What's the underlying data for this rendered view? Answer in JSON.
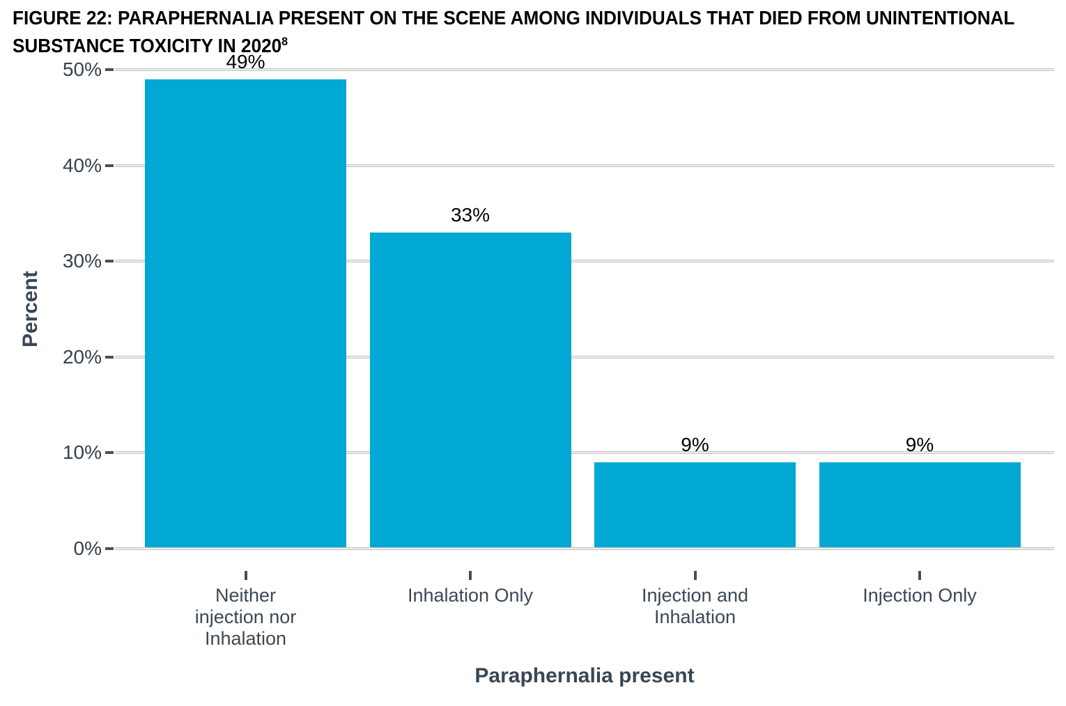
{
  "figure": {
    "title_line1": "FIGURE 22: PARAPHERNALIA PRESENT ON THE SCENE AMONG INDIVIDUALS THAT DIED FROM UNINTENTIONAL",
    "title_line2": "SUBSTANCE TOXICITY IN 2020",
    "title_superscript": "8"
  },
  "chart_data": {
    "type": "bar",
    "title": "FIGURE 22: PARAPHERNALIA PRESENT ON THE SCENE AMONG INDIVIDUALS THAT DIED FROM UNINTENTIONAL SUBSTANCE TOXICITY IN 2020(8)",
    "categories": [
      "Neither injection nor Inhalation",
      "Inhalation Only",
      "Injection and Inhalation",
      "Injection Only"
    ],
    "category_lines": [
      [
        "Neither",
        "injection nor",
        "Inhalation"
      ],
      [
        "Inhalation Only"
      ],
      [
        "Injection and",
        "Inhalation"
      ],
      [
        "Injection Only"
      ]
    ],
    "values": [
      49,
      33,
      9,
      9
    ],
    "value_labels": [
      "49%",
      "33%",
      "9%",
      "9%"
    ],
    "xlabel": "Paraphernalia present",
    "ylabel": "Percent",
    "ylim": [
      0,
      50
    ],
    "yticks": [
      0,
      10,
      20,
      30,
      40,
      50
    ],
    "ytick_labels": [
      "0%",
      "10%",
      "20%",
      "30%",
      "40%",
      "50%"
    ],
    "grid": "horizontal-only",
    "legend": "none",
    "colors": {
      "bar": "#00A8D3",
      "axis_text": "#36414d",
      "axis_title": "#3a4654",
      "value_label": "#000000",
      "gridline": "#c4c4c4",
      "tick_mark": "#4d4d4d",
      "title_text": "#000000",
      "background": "#ffffff"
    }
  }
}
